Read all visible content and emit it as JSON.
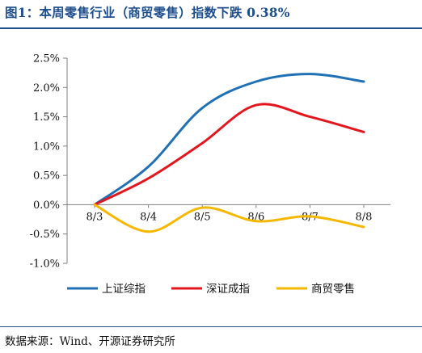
{
  "title": "图1：本周零售行业（商贸零售）指数下跌 0.38%",
  "source": "数据来源：Wind、开源证券研究所",
  "chart_data": {
    "type": "line",
    "categories": [
      "8/3",
      "8/4",
      "8/5",
      "8/6",
      "8/7",
      "8/8"
    ],
    "ylim": [
      -1.0,
      2.5
    ],
    "y_ticks": [
      "-1.0%",
      "-0.5%",
      "0.0%",
      "0.5%",
      "1.0%",
      "1.5%",
      "2.0%",
      "2.5%"
    ],
    "y_tick_values": [
      -1.0,
      -0.5,
      0.0,
      0.5,
      1.0,
      1.5,
      2.0,
      2.5
    ],
    "grid": false,
    "smooth": true,
    "legend_position": "bottom",
    "series": [
      {
        "name": "上证综指",
        "color": "#1f70b4",
        "values": [
          0.0,
          0.65,
          1.65,
          2.1,
          2.23,
          2.1
        ]
      },
      {
        "name": "深证成指",
        "color": "#e3161e",
        "values": [
          0.0,
          0.45,
          1.05,
          1.7,
          1.5,
          1.24
        ]
      },
      {
        "name": "商贸零售",
        "color": "#f5b800",
        "values": [
          0.0,
          -0.46,
          -0.05,
          -0.28,
          -0.2,
          -0.38
        ]
      }
    ]
  }
}
